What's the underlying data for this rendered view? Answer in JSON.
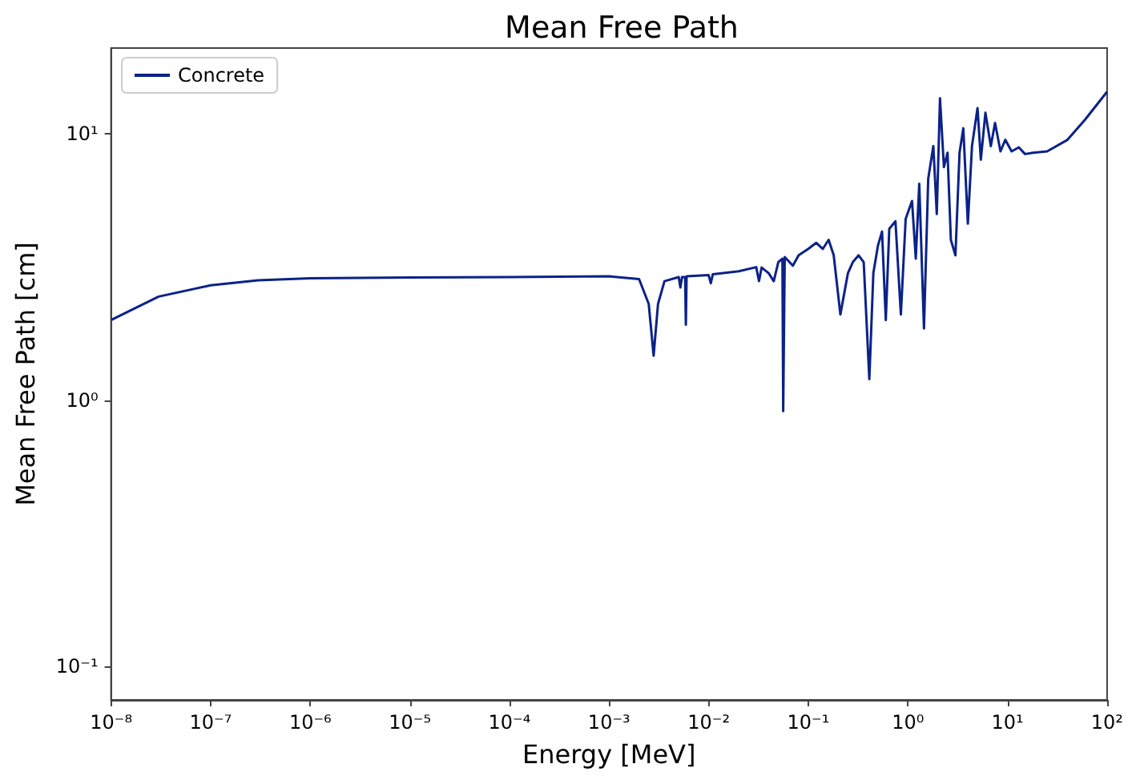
{
  "chart_data": {
    "type": "line",
    "title": "Mean Free Path",
    "xlabel": "Energy [MeV]",
    "ylabel": "Mean Free Path [cm]",
    "log": "xy",
    "legend": "top left",
    "grid": false,
    "xlim": [
      1e-08,
      100
    ],
    "ylim": [
      0.075,
      21
    ],
    "xticks": [
      {
        "value": 1e-08,
        "label": "10⁻⁸"
      },
      {
        "value": 1e-07,
        "label": "10⁻⁷"
      },
      {
        "value": 1e-06,
        "label": "10⁻⁶"
      },
      {
        "value": 1e-05,
        "label": "10⁻⁵"
      },
      {
        "value": 0.0001,
        "label": "10⁻⁴"
      },
      {
        "value": 0.001,
        "label": "10⁻³"
      },
      {
        "value": 0.01,
        "label": "10⁻²"
      },
      {
        "value": 0.1,
        "label": "10⁻¹"
      },
      {
        "value": 1,
        "label": "10⁰"
      },
      {
        "value": 10,
        "label": "10¹"
      },
      {
        "value": 100,
        "label": "10²"
      }
    ],
    "yticks": [
      {
        "value": 0.1,
        "label": "10⁻¹"
      },
      {
        "value": 1,
        "label": "10⁰"
      },
      {
        "value": 10,
        "label": "10¹"
      }
    ],
    "series": [
      {
        "name": "Concrete",
        "color": "#0b2288",
        "x": [
          1e-08,
          3e-08,
          1e-07,
          3e-07,
          1e-06,
          1e-05,
          0.0001,
          0.001,
          0.002,
          0.0025,
          0.0028,
          0.0031,
          0.0036,
          0.005,
          0.0052,
          0.0054,
          0.0058,
          0.0059,
          0.006,
          0.01,
          0.0105,
          0.011,
          0.02,
          0.03,
          0.032,
          0.034,
          0.04,
          0.045,
          0.05,
          0.055,
          0.056,
          0.058,
          0.07,
          0.08,
          0.1,
          0.12,
          0.14,
          0.16,
          0.18,
          0.21,
          0.25,
          0.28,
          0.32,
          0.36,
          0.41,
          0.45,
          0.5,
          0.55,
          0.6,
          0.65,
          0.75,
          0.85,
          0.95,
          1.1,
          1.2,
          1.3,
          1.45,
          1.6,
          1.8,
          1.95,
          2.1,
          2.3,
          2.5,
          2.7,
          3.0,
          3.3,
          3.6,
          4.0,
          4.4,
          5.0,
          5.4,
          6.0,
          6.8,
          7.5,
          8.5,
          9.5,
          11,
          13,
          15,
          18,
          25,
          40,
          60,
          100
        ],
        "values": [
          2.0,
          2.45,
          2.7,
          2.82,
          2.87,
          2.89,
          2.9,
          2.92,
          2.85,
          2.3,
          1.47,
          2.3,
          2.8,
          2.9,
          2.65,
          2.9,
          2.9,
          1.92,
          2.92,
          2.95,
          2.75,
          2.97,
          3.05,
          3.16,
          2.8,
          3.15,
          3.0,
          2.8,
          3.3,
          3.4,
          0.91,
          3.45,
          3.2,
          3.5,
          3.7,
          3.9,
          3.7,
          4.0,
          3.5,
          2.1,
          3.0,
          3.3,
          3.5,
          3.3,
          1.2,
          3.0,
          3.8,
          4.3,
          2.0,
          4.4,
          4.7,
          2.1,
          4.8,
          5.6,
          3.4,
          6.5,
          1.86,
          6.8,
          9.0,
          5.0,
          13.6,
          7.5,
          8.5,
          4.0,
          3.5,
          8.5,
          10.5,
          4.6,
          9.0,
          12.5,
          8.0,
          12.0,
          9.0,
          11.0,
          8.6,
          9.5,
          8.6,
          8.9,
          8.4,
          8.5,
          8.6,
          9.5,
          11.3,
          14.4
        ]
      }
    ]
  }
}
